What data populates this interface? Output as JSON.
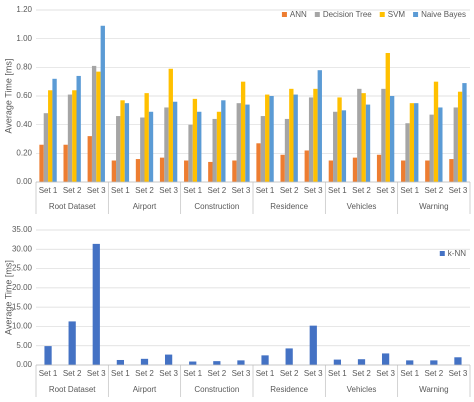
{
  "chart_data": [
    {
      "type": "bar",
      "ylabel": "Average Time [ms]",
      "categories": [
        "Set 1",
        "Set 2",
        "Set 3",
        "Set 1",
        "Set 2",
        "Set 3",
        "Set 1",
        "Set 2",
        "Set 3",
        "Set 1",
        "Set 2",
        "Set 3",
        "Set 1",
        "Set 2",
        "Set 3",
        "Set 1",
        "Set 2",
        "Set 3"
      ],
      "groups": [
        "Root Dataset",
        "Airport",
        "Construction",
        "Residence",
        "Vehicles",
        "Warning"
      ],
      "series": [
        {
          "name": "ANN",
          "color": "#ed7d31",
          "values": [
            0.26,
            0.26,
            0.32,
            0.15,
            0.16,
            0.17,
            0.15,
            0.14,
            0.15,
            0.27,
            0.19,
            0.22,
            0.15,
            0.17,
            0.19,
            0.15,
            0.15,
            0.16
          ]
        },
        {
          "name": "Decision Tree",
          "color": "#a5a5a5",
          "values": [
            0.48,
            0.61,
            0.81,
            0.46,
            0.45,
            0.52,
            0.4,
            0.44,
            0.55,
            0.46,
            0.44,
            0.59,
            0.49,
            0.65,
            0.65,
            0.41,
            0.47,
            0.52
          ]
        },
        {
          "name": "SVM",
          "color": "#ffc000",
          "values": [
            0.64,
            0.64,
            0.77,
            0.57,
            0.62,
            0.79,
            0.58,
            0.49,
            0.7,
            0.61,
            0.65,
            0.65,
            0.59,
            0.62,
            0.9,
            0.55,
            0.7,
            0.63
          ]
        },
        {
          "name": "Naive Bayes",
          "color": "#5b9bd5",
          "values": [
            0.72,
            0.74,
            1.09,
            0.55,
            0.49,
            0.56,
            0.49,
            0.57,
            0.54,
            0.6,
            0.61,
            0.78,
            0.5,
            0.54,
            0.6,
            0.55,
            0.52,
            0.69
          ]
        }
      ],
      "ylim": [
        0,
        1.2
      ],
      "yticks": [
        {
          "value": 0,
          "label": "0.00"
        },
        {
          "value": 0.2,
          "label": "0.20"
        },
        {
          "value": 0.4,
          "label": "0.40"
        },
        {
          "value": 0.6,
          "label": "0.60"
        },
        {
          "value": 0.8,
          "label": "0.80"
        },
        {
          "value": 1,
          "label": "1.00"
        },
        {
          "value": 1.2,
          "label": "1.20"
        }
      ],
      "grid": true,
      "legend": "top-right"
    },
    {
      "type": "bar",
      "ylabel": "Average Time [ms]",
      "categories": [
        "Set 1",
        "Set 2",
        "Set 3",
        "Set 1",
        "Set 2",
        "Set 3",
        "Set 1",
        "Set 2",
        "Set 3",
        "Set 1",
        "Set 2",
        "Set 3",
        "Set 1",
        "Set 2",
        "Set 3",
        "Set 1",
        "Set 2",
        "Set 3"
      ],
      "groups": [
        "Root Dataset",
        "Airport",
        "Construction",
        "Residence",
        "Vehicles",
        "Warning"
      ],
      "series": [
        {
          "name": "k-NN",
          "color": "#4472c4",
          "values": [
            4.9,
            11.3,
            31.4,
            1.3,
            1.6,
            2.7,
            0.9,
            1.0,
            1.2,
            2.5,
            4.3,
            10.2,
            1.4,
            1.5,
            3.0,
            1.2,
            1.2,
            2.0
          ]
        }
      ],
      "ylim": [
        0,
        35
      ],
      "yticks": [
        {
          "value": 0,
          "label": "0.00"
        },
        {
          "value": 5,
          "label": "5.00"
        },
        {
          "value": 10,
          "label": "10.00"
        },
        {
          "value": 15,
          "label": "15.00"
        },
        {
          "value": 20,
          "label": "20.00"
        },
        {
          "value": 25,
          "label": "25.00"
        },
        {
          "value": 30,
          "label": "30.00"
        },
        {
          "value": 35,
          "label": "35.00"
        }
      ],
      "grid": true,
      "legend": "top-right"
    }
  ]
}
